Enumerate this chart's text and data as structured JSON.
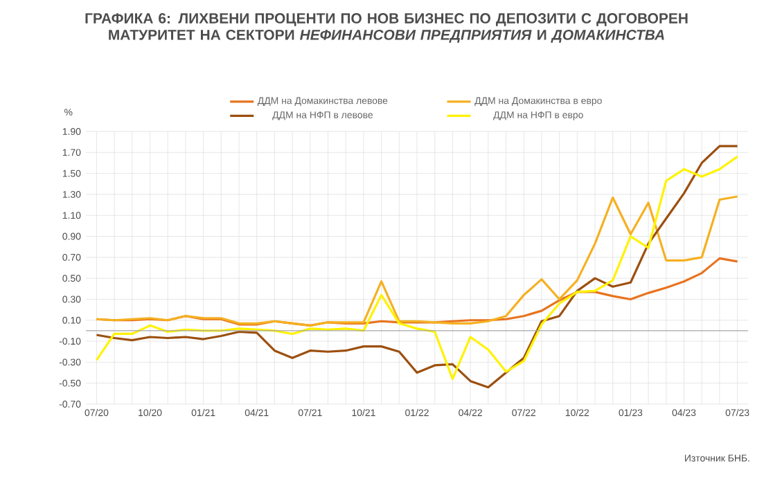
{
  "chart_data": {
    "type": "line",
    "title": "ГРАФИКА 6: ЛИХВЕНИ ПРОЦЕНТИ ПО НОВ БИЗНЕС ПО ДЕПОЗИТИ С ДОГОВОРЕН МАТУРИТЕТ НА СЕКТОРИ *НЕФИНАНСОВИ ПРЕДПРИЯТИЯ* И *ДОМАКИНСТВА*",
    "ylabel": "%",
    "annotations": [
      "Източник БНБ."
    ],
    "categories": [
      "07/20",
      null,
      null,
      "10/20",
      null,
      null,
      "01/21",
      null,
      null,
      "04/21",
      null,
      null,
      "07/21",
      null,
      null,
      "10/21",
      null,
      null,
      "01/22",
      null,
      null,
      "04/22",
      null,
      null,
      "07/22",
      null,
      null,
      "10/22",
      null,
      null,
      "01/23",
      null,
      null,
      "04/23",
      null,
      null,
      "07/23"
    ],
    "series": [
      {
        "name": "ДДМ на Домакинства левове",
        "color": "#e8731e",
        "values": [
          0.11,
          0.1,
          0.1,
          0.11,
          0.1,
          0.14,
          0.11,
          0.11,
          0.06,
          0.06,
          0.09,
          0.07,
          0.05,
          0.08,
          0.07,
          0.07,
          0.09,
          0.08,
          0.08,
          0.08,
          0.09,
          0.1,
          0.1,
          0.11,
          0.14,
          0.19,
          0.29,
          0.37,
          0.37,
          0.33,
          0.3,
          0.36,
          0.41,
          0.47,
          0.55,
          0.69,
          0.66
        ]
      },
      {
        "name": "ДДМ на Домакинства в евро",
        "color": "#f5b021",
        "values": [
          0.11,
          0.1,
          0.11,
          0.12,
          0.1,
          0.14,
          0.12,
          0.12,
          0.07,
          0.07,
          0.09,
          0.07,
          0.05,
          0.08,
          0.08,
          0.08,
          0.47,
          0.09,
          0.09,
          0.08,
          0.07,
          0.07,
          0.09,
          0.14,
          0.34,
          0.49,
          0.3,
          0.48,
          0.83,
          1.27,
          0.92,
          1.22,
          0.67,
          0.67,
          0.7,
          1.25,
          1.28
        ]
      },
      {
        "name": "ДДМ на НФП  в левове",
        "color": "#9c4f0f",
        "values": [
          -0.04,
          -0.07,
          -0.09,
          -0.06,
          -0.07,
          -0.06,
          -0.08,
          -0.05,
          -0.01,
          -0.02,
          -0.19,
          -0.26,
          -0.19,
          -0.2,
          -0.19,
          -0.15,
          -0.15,
          -0.2,
          -0.4,
          -0.33,
          -0.32,
          -0.48,
          -0.54,
          -0.4,
          -0.26,
          0.09,
          0.14,
          0.38,
          0.5,
          0.42,
          0.46,
          0.83,
          1.07,
          1.31,
          1.6,
          1.76,
          1.76
        ]
      },
      {
        "name": "ДДМ на НФП  в евро",
        "color": "#fff200",
        "values": [
          -0.28,
          -0.03,
          -0.03,
          0.05,
          -0.01,
          0.01,
          0.0,
          0.0,
          0.02,
          0.01,
          0.0,
          -0.03,
          0.02,
          0.01,
          0.02,
          0.0,
          0.34,
          0.07,
          0.02,
          -0.01,
          -0.46,
          -0.06,
          -0.18,
          -0.39,
          -0.29,
          0.06,
          0.26,
          0.37,
          0.38,
          0.48,
          0.9,
          0.79,
          1.43,
          1.54,
          1.47,
          1.54,
          1.66
        ]
      }
    ],
    "ylim": [
      -0.7,
      1.9
    ],
    "yticks": [
      {
        "value": -0.7,
        "label": "-0.70"
      },
      {
        "value": -0.5,
        "label": "-0.50"
      },
      {
        "value": -0.3,
        "label": "-0.30"
      },
      {
        "value": -0.1,
        "label": "-0.10"
      },
      {
        "value": 0.1,
        "label": "0.10"
      },
      {
        "value": 0.3,
        "label": "0.30"
      },
      {
        "value": 0.5,
        "label": "0.50"
      },
      {
        "value": 0.7,
        "label": "0.70"
      },
      {
        "value": 0.9,
        "label": "0.90"
      },
      {
        "value": 1.1,
        "label": "1.10"
      },
      {
        "value": 1.3,
        "label": "1.30"
      },
      {
        "value": 1.5,
        "label": "1.50"
      },
      {
        "value": 1.7,
        "label": "1.70"
      },
      {
        "value": 1.9,
        "label": "1.90"
      }
    ],
    "grid": true,
    "legend": "top"
  }
}
